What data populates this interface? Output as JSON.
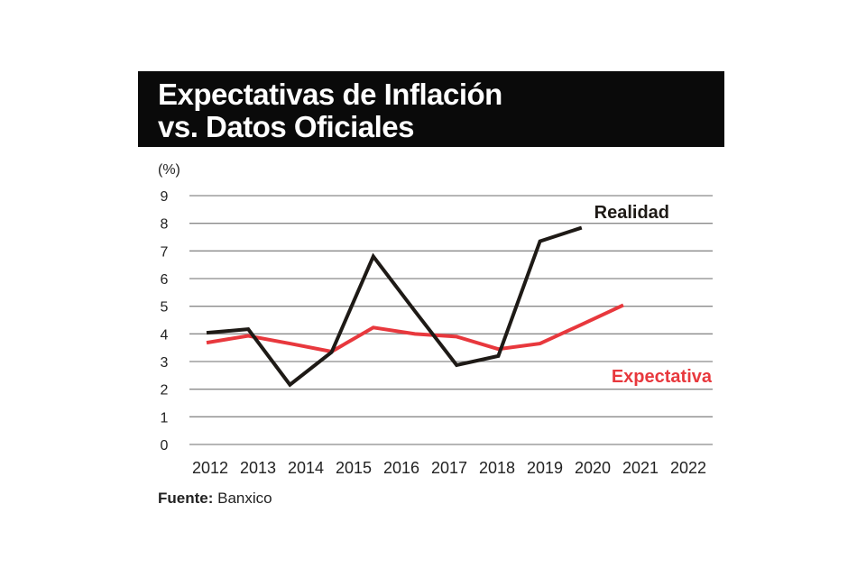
{
  "chart_data": {
    "type": "line",
    "title": [
      "Expectativas de Inflación",
      "vs. Datos Oficiales"
    ],
    "ylabel": "(%)",
    "ylim": [
      0,
      9
    ],
    "yticks": [
      "0",
      "1",
      "2",
      "3",
      "4",
      "5",
      "6",
      "7",
      "8",
      "9"
    ],
    "grid": true,
    "categories": [
      "2012",
      "2013",
      "2014",
      "2015",
      "2016",
      "2017",
      "2018",
      "2019",
      "2020",
      "2021",
      "2022"
    ],
    "series": [
      {
        "name": "Realidad",
        "color": "#1e1a16",
        "values": [
          4.04,
          4.17,
          2.16,
          3.34,
          6.8,
          4.82,
          2.87,
          3.2,
          7.35,
          7.84,
          null
        ]
      },
      {
        "name": "Expectativa",
        "color": "#e8383d",
        "values": [
          3.68,
          3.93,
          3.65,
          3.36,
          4.23,
          4.0,
          3.9,
          3.45,
          3.65,
          4.34,
          5.04
        ]
      }
    ],
    "source_label": "Fuente:",
    "source": "Banxico"
  }
}
